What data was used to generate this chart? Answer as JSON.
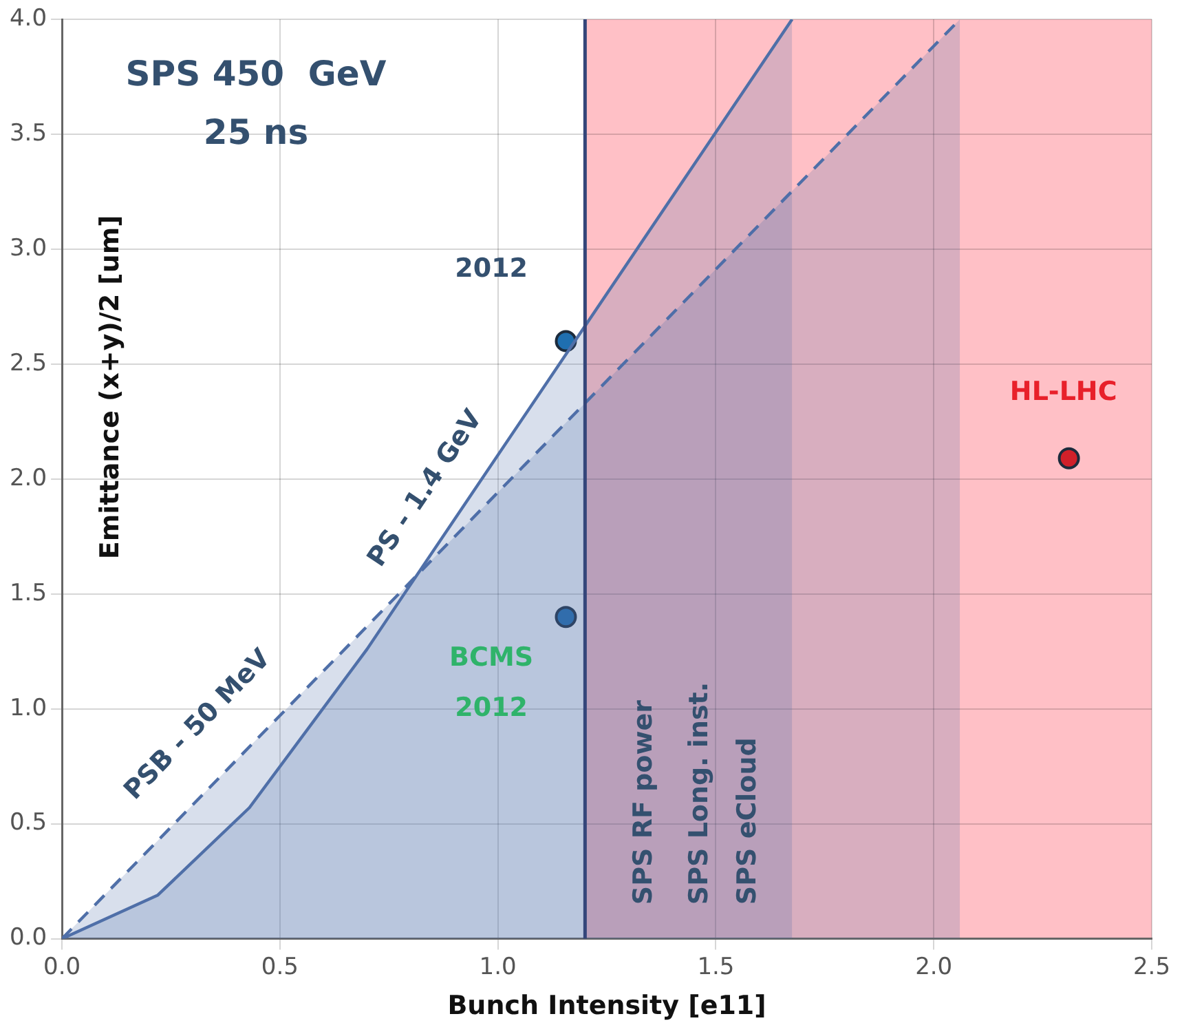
{
  "chart_data": {
    "type": "area",
    "xlabel": "Bunch Intensity [e11]",
    "ylabel": "Emittance (x+y)/2 [um]",
    "xlim": [
      0,
      2.5
    ],
    "xticks": [
      {
        "value": 0,
        "label": "0.0"
      },
      {
        "value": 0.5,
        "label": "0.5"
      },
      {
        "value": 1,
        "label": "1.0"
      },
      {
        "value": 1.5,
        "label": "1.5"
      },
      {
        "value": 2,
        "label": "2.0"
      },
      {
        "value": 2.5,
        "label": "2.5"
      }
    ],
    "ylim": [
      0,
      4
    ],
    "yticks": [
      {
        "value": 0,
        "label": "0.0"
      },
      {
        "value": 0.5,
        "label": "0.5"
      },
      {
        "value": 1,
        "label": "1.0"
      },
      {
        "value": 1.5,
        "label": "1.5"
      },
      {
        "value": 2,
        "label": "2.0"
      },
      {
        "value": 2.5,
        "label": "2.5"
      },
      {
        "value": 3,
        "label": "3.0"
      },
      {
        "value": 3.5,
        "label": "3.5"
      },
      {
        "value": 4,
        "label": "4.0"
      }
    ],
    "grid": true,
    "legend": false,
    "series": [
      {
        "color": "#4f6fa8",
        "x": [
          0,
          0.22,
          0.43,
          0.7,
          0.81,
          1.675
        ],
        "values": [
          0,
          0.19,
          0.57,
          1.26,
          1.57,
          4.0
        ]
      },
      {
        "color": "#4f6fa8",
        "line_style": "dashed",
        "x": [
          0,
          2.06
        ],
        "values": [
          0,
          4.0
        ]
      },
      {
        "type": "scatter",
        "marker": "circle",
        "x": [
          1.156,
          1.156,
          2.31
        ],
        "values": [
          2.6,
          1.4,
          2.09
        ],
        "colors": [
          "#1f6fb0",
          "#1f6fb0",
          "#d0202a"
        ]
      }
    ],
    "bands": [
      {
        "axis": "x",
        "from": 1.2,
        "to": 2.5,
        "color": "#ffc0c6"
      }
    ],
    "ref_lines": [
      {
        "axis": "x",
        "value": 1.2,
        "color": "#34467a"
      }
    ],
    "annotations": [
      "SPS 450  GeV",
      "25 ns",
      "2012",
      "BCMS\n2012",
      "HL-LHC",
      "PSB - 50 MeV",
      "PS - 1.4 GeV",
      "SPS RF power",
      "SPS Long. inst.",
      "SPS eCloud"
    ]
  }
}
